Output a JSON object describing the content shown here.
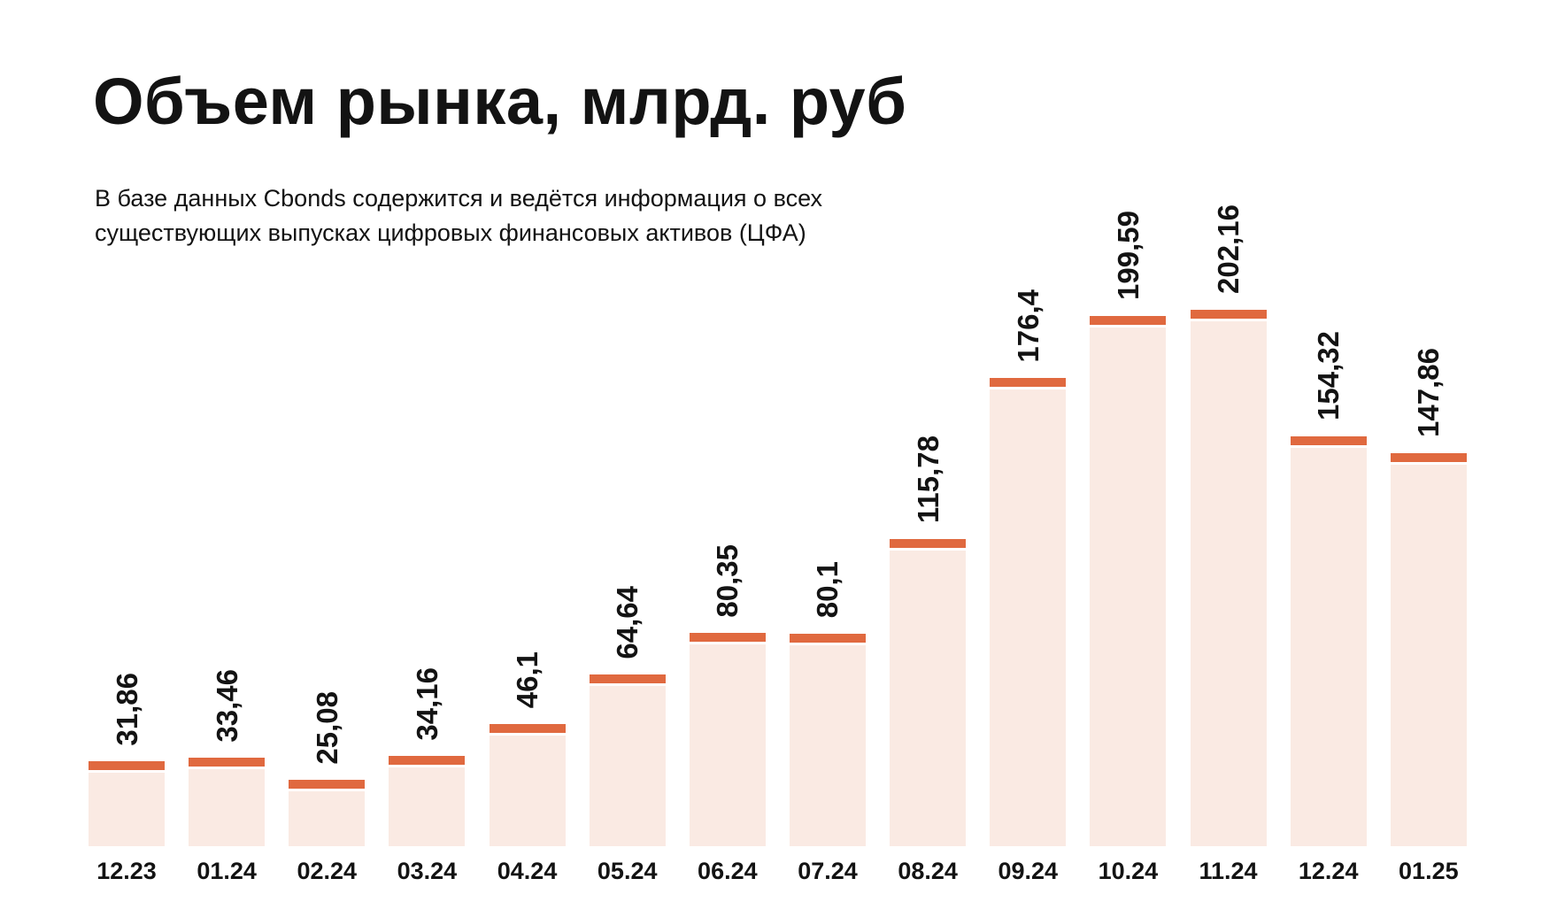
{
  "page": {
    "title": "Объем рынка, млрд. руб",
    "subtitle_line1": "В базе данных Cbonds содержится и ведётся информация о всех",
    "subtitle_line2": "существующих выпусках цифровых финансовых активов (ЦФА)"
  },
  "colors": {
    "background": "#FFFFFF",
    "text": "#131313",
    "bar_fill": "#FAEAE3",
    "bar_cap": "#E0693F"
  },
  "chart_data": {
    "type": "bar",
    "title": "Объем рынка, млрд. руб",
    "subtitle": "В базе данных Cbonds содержится и ведётся информация о всех существующих выпусках цифровых финансовых активов (ЦФА)",
    "categories": [
      "12.23",
      "01.24",
      "02.24",
      "03.24",
      "04.24",
      "05.24",
      "06.24",
      "07.24",
      "08.24",
      "09.24",
      "10.24",
      "11.24",
      "12.24",
      "01.25"
    ],
    "values": [
      31.86,
      33.46,
      25.08,
      34.16,
      46.1,
      64.64,
      80.35,
      80.1,
      115.78,
      176.4,
      199.59,
      202.16,
      154.32,
      147.86
    ],
    "value_labels": [
      "31,86",
      "33,46",
      "25,08",
      "34,16",
      "46,1",
      "64,64",
      "80,35",
      "80,1",
      "115,78",
      "176,4",
      "199,59",
      "202,16",
      "154,32",
      "147,86"
    ],
    "xlabel": "",
    "ylabel": "млрд. руб",
    "ylim": [
      0,
      210
    ],
    "grid": false,
    "legend": false,
    "value_label_rotation": -90,
    "bar_color": "#FAEAE3",
    "cap_color": "#E0693F"
  }
}
